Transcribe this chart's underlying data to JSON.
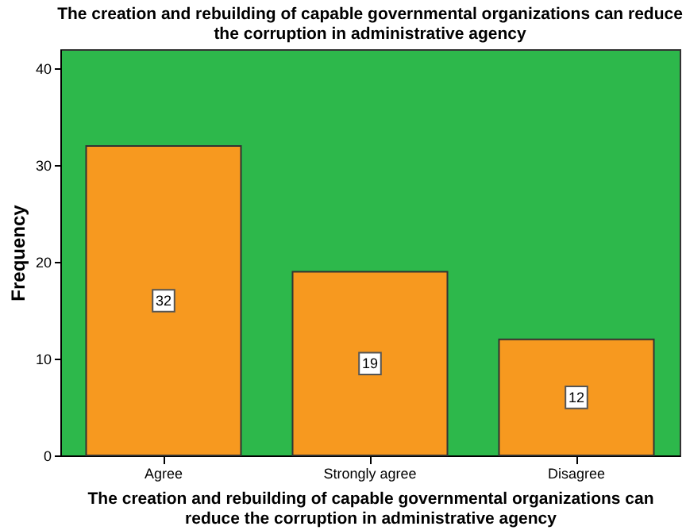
{
  "chart_data": {
    "type": "bar",
    "title": "The creation and rebuilding of capable governmental organizations can reduce the corruption in administrative agency",
    "xlabel": "The creation and rebuilding of capable governmental organizations can reduce the corruption in administrative agency",
    "ylabel": "Frequency",
    "categories": [
      "Agree",
      "Strongly agree",
      "Disagree"
    ],
    "values": [
      32,
      19,
      12
    ],
    "color": "#f7991f",
    "ylim": [
      0,
      42
    ],
    "yticks": [
      0,
      10,
      20,
      30,
      40
    ],
    "data_labels": true,
    "grid": false
  }
}
